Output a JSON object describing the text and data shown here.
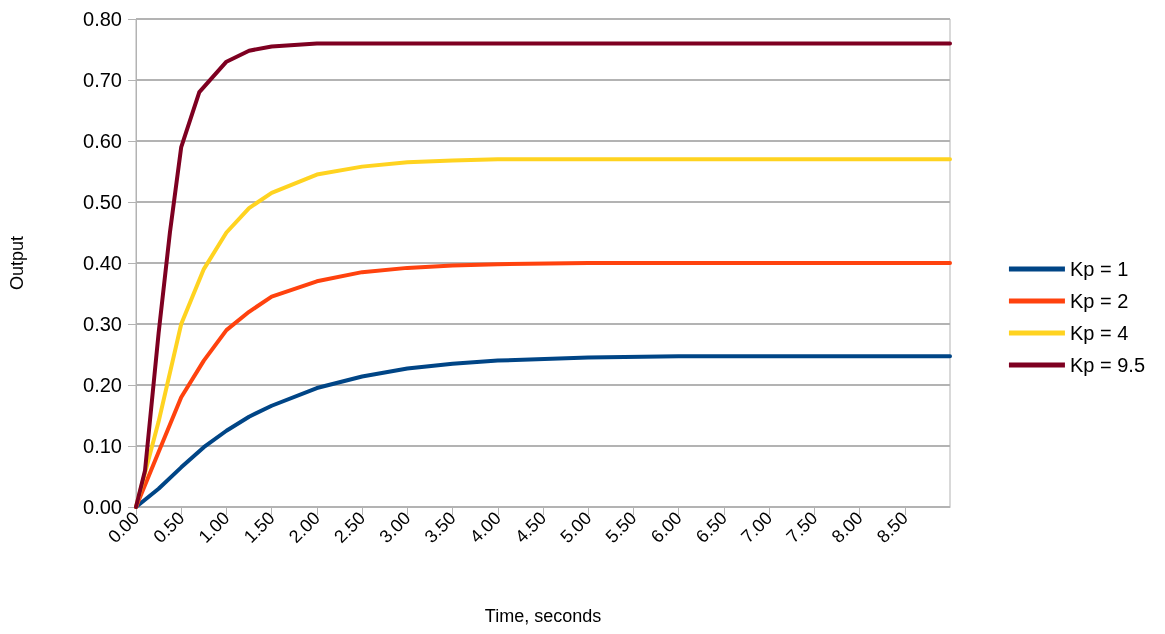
{
  "chart_data": {
    "type": "line",
    "xlabel": "Time, seconds",
    "ylabel": "Output",
    "xlim": [
      0,
      9
    ],
    "ylim": [
      0,
      0.8
    ],
    "xticks": [
      {
        "value": 0,
        "label": "0.00"
      },
      {
        "value": 0.5,
        "label": "0.50"
      },
      {
        "value": 1,
        "label": "1.00"
      },
      {
        "value": 1.5,
        "label": "1.50"
      },
      {
        "value": 2,
        "label": "2.00"
      },
      {
        "value": 2.5,
        "label": "2.50"
      },
      {
        "value": 3,
        "label": "3.00"
      },
      {
        "value": 3.5,
        "label": "3.50"
      },
      {
        "value": 4,
        "label": "4.00"
      },
      {
        "value": 4.5,
        "label": "4.50"
      },
      {
        "value": 5,
        "label": "5.00"
      },
      {
        "value": 5.5,
        "label": "5.50"
      },
      {
        "value": 6,
        "label": "6.00"
      },
      {
        "value": 6.5,
        "label": "6.50"
      },
      {
        "value": 7,
        "label": "7.00"
      },
      {
        "value": 7.5,
        "label": "7.50"
      },
      {
        "value": 8,
        "label": "8.00"
      },
      {
        "value": 8.5,
        "label": "8.50"
      }
    ],
    "yticks": [
      {
        "value": 0,
        "label": "0.00"
      },
      {
        "value": 0.1,
        "label": "0.10"
      },
      {
        "value": 0.2,
        "label": "0.20"
      },
      {
        "value": 0.3,
        "label": "0.30"
      },
      {
        "value": 0.4,
        "label": "0.40"
      },
      {
        "value": 0.5,
        "label": "0.50"
      },
      {
        "value": 0.6,
        "label": "0.60"
      },
      {
        "value": 0.7,
        "label": "0.70"
      },
      {
        "value": 0.8,
        "label": "0.80"
      }
    ],
    "grid": "y",
    "legend": "right",
    "marker": "none",
    "line_style": "solid",
    "series": [
      {
        "name": "Kp = 1",
        "color": "#004586",
        "x": [
          0,
          0.25,
          0.5,
          0.75,
          1,
          1.25,
          1.5,
          2,
          2.5,
          3,
          3.5,
          4,
          5,
          6,
          7,
          8,
          9
        ],
        "values": [
          0,
          0.03,
          0.065,
          0.098,
          0.125,
          0.148,
          0.166,
          0.195,
          0.214,
          0.227,
          0.235,
          0.24,
          0.245,
          0.247,
          0.247,
          0.247,
          0.247
        ]
      },
      {
        "name": "Kp = 2",
        "color": "#ff420e",
        "x": [
          0,
          0.25,
          0.5,
          0.75,
          1,
          1.25,
          1.5,
          2,
          2.5,
          3,
          3.5,
          4,
          5,
          6,
          7,
          8,
          9
        ],
        "values": [
          0,
          0.09,
          0.18,
          0.24,
          0.29,
          0.32,
          0.345,
          0.37,
          0.385,
          0.392,
          0.396,
          0.398,
          0.4,
          0.4,
          0.4,
          0.4,
          0.4
        ]
      },
      {
        "name": "Kp = 4",
        "color": "#ffd320",
        "x": [
          0,
          0.25,
          0.5,
          0.75,
          1,
          1.25,
          1.5,
          2,
          2.5,
          3,
          3.5,
          4,
          5,
          6,
          7,
          8,
          9
        ],
        "values": [
          0,
          0.14,
          0.3,
          0.39,
          0.45,
          0.49,
          0.515,
          0.545,
          0.558,
          0.565,
          0.568,
          0.57,
          0.57,
          0.57,
          0.57,
          0.57,
          0.57
        ]
      },
      {
        "name": "Kp = 9.5",
        "color": "#7e0021",
        "x": [
          0,
          0.1,
          0.25,
          0.375,
          0.5,
          0.7,
          1,
          1.25,
          1.5,
          2,
          3,
          4,
          5,
          6,
          7,
          8,
          9
        ],
        "values": [
          0,
          0.06,
          0.285,
          0.45,
          0.59,
          0.68,
          0.73,
          0.748,
          0.755,
          0.76,
          0.76,
          0.76,
          0.76,
          0.76,
          0.76,
          0.76,
          0.76
        ]
      }
    ]
  }
}
